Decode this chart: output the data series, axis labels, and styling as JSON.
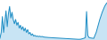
{
  "values": [
    120,
    200,
    420,
    200,
    350,
    500,
    280,
    460,
    560,
    400,
    480,
    380,
    320,
    380,
    300,
    340,
    260,
    300,
    240,
    280,
    220,
    260,
    200,
    240,
    180,
    200,
    160,
    180,
    150,
    160,
    145,
    150,
    142,
    148,
    140,
    144,
    138,
    135,
    133,
    132,
    130,
    129,
    128,
    127,
    126,
    125,
    124,
    123,
    122,
    121,
    120,
    119,
    118,
    117,
    116,
    115,
    114,
    113,
    112,
    111,
    110,
    109,
    108,
    107,
    106,
    105,
    105,
    106,
    110,
    115,
    120,
    130,
    490,
    160,
    130,
    125,
    122,
    120,
    118,
    160,
    200,
    260,
    320,
    380,
    430,
    480,
    520,
    560,
    590,
    610
  ],
  "line_color": "#1b8cc4",
  "fill_color": "#c8e4f4",
  "background_color": "#ffffff",
  "ylim_min": 95,
  "ylim_max": 650
}
